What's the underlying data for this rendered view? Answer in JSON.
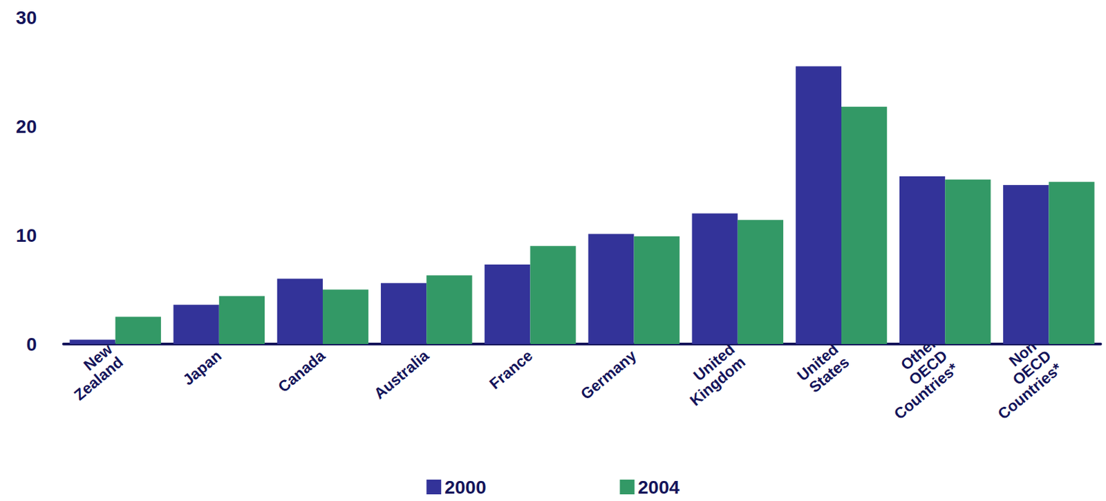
{
  "chart_data": {
    "type": "bar",
    "categories": [
      "New Zealand",
      "Japan",
      "Canada",
      "Australia",
      "France",
      "Germany",
      "United Kingdom",
      "United States",
      "Other OECD Countries*",
      "Non-OECD Countries*"
    ],
    "series": [
      {
        "name": "2000",
        "color": "#333399",
        "values": [
          0.4,
          3.6,
          6.0,
          5.6,
          7.3,
          10.1,
          12.0,
          25.5,
          15.4,
          14.6
        ]
      },
      {
        "name": "2004",
        "color": "#339966",
        "values": [
          2.5,
          4.4,
          5.0,
          6.3,
          9.0,
          9.9,
          11.4,
          21.8,
          15.1,
          14.9
        ]
      }
    ],
    "ylim": [
      0,
      30
    ],
    "yticks": [
      0,
      10,
      20,
      30
    ],
    "grid": false,
    "legend": "bottom"
  }
}
